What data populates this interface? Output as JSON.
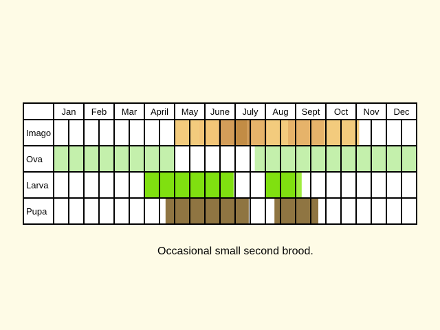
{
  "chart_data": {
    "type": "phenology-chart",
    "months": [
      "Jan",
      "Feb",
      "Mar",
      "April",
      "May",
      "June",
      "July",
      "Aug",
      "Sept",
      "Oct",
      "Nov",
      "Dec"
    ],
    "stages": [
      {
        "name": "Imago",
        "periods": [
          {
            "start": 4.0,
            "end": 4.8,
            "color": "#f3cb7d"
          },
          {
            "start": 4.8,
            "end": 5.45,
            "color": "#f3c577"
          },
          {
            "start": 5.45,
            "end": 6.0,
            "color": "#d39d59"
          },
          {
            "start": 6.0,
            "end": 6.4,
            "color": "#c28c45"
          },
          {
            "start": 6.4,
            "end": 6.55,
            "color": "#d39d59"
          },
          {
            "start": 6.55,
            "end": 7.05,
            "color": "#e6b36a"
          },
          {
            "start": 7.05,
            "end": 7.75,
            "color": "#f3cb7d"
          },
          {
            "start": 7.75,
            "end": 8.95,
            "color": "#e6b36a"
          },
          {
            "start": 8.95,
            "end": 10.1,
            "color": "#f3cb7d"
          }
        ]
      },
      {
        "name": "Ova",
        "periods": [
          {
            "start": 0.0,
            "end": 4.0,
            "color": "#c4f0ac"
          },
          {
            "start": 6.65,
            "end": 12.0,
            "color": "#c4f0ac"
          }
        ]
      },
      {
        "name": "Larva",
        "periods": [
          {
            "start": 3.0,
            "end": 5.95,
            "color": "#80e010"
          },
          {
            "start": 7.0,
            "end": 8.0,
            "color": "#80e010"
          },
          {
            "start": 8.0,
            "end": 8.2,
            "color": "#a0ec40"
          }
        ]
      },
      {
        "name": "Pupa",
        "periods": [
          {
            "start": 3.7,
            "end": 6.45,
            "color": "#8f7542"
          },
          {
            "start": 7.3,
            "end": 8.75,
            "color": "#8f7542"
          }
        ]
      }
    ]
  },
  "note": "Occasional small second brood."
}
